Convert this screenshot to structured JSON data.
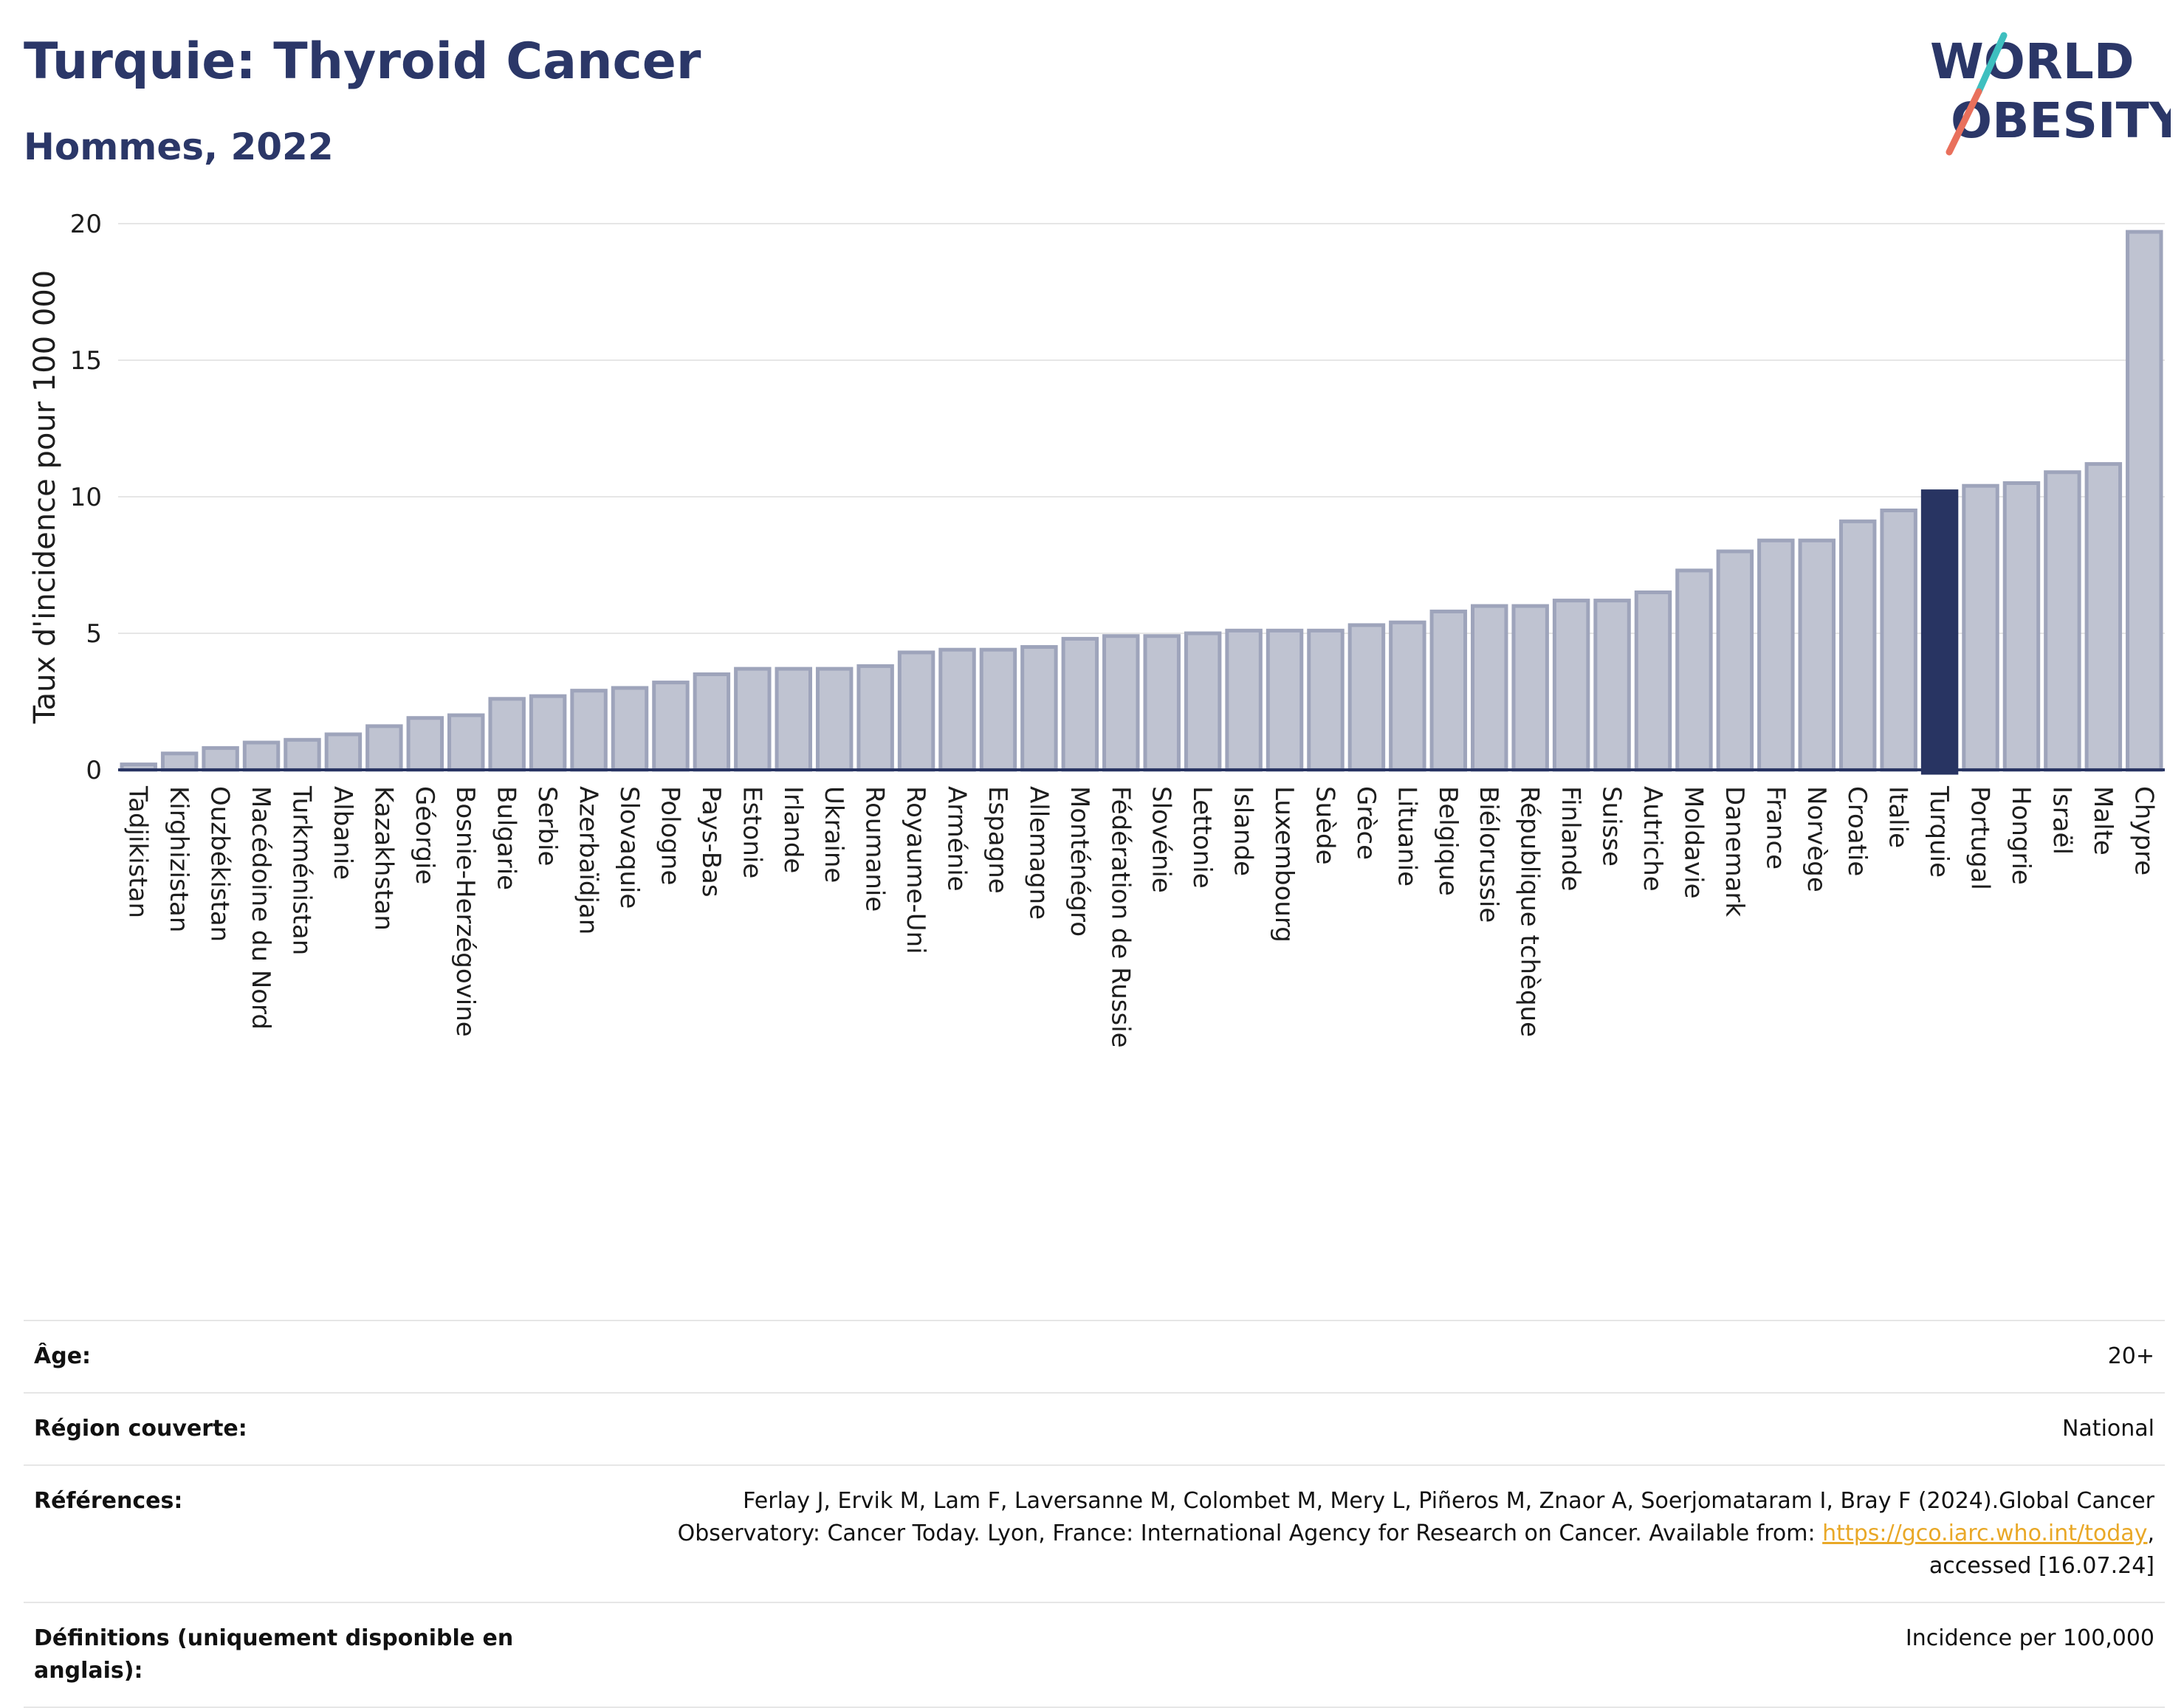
{
  "header": {
    "title": "Turquie: Thyroid Cancer",
    "subtitle": "Hommes, 2022"
  },
  "logo": {
    "line1": "WORLD",
    "line2": "OBESITY",
    "slash_colors": [
      "#3ebfbf",
      "#e9705c"
    ]
  },
  "colors": {
    "bar": "#bfc3d1",
    "bar_edge": "#9ea4bb",
    "highlight": "#283462",
    "grid": "#e6e6e6",
    "axis": "#283462"
  },
  "chart_data": {
    "type": "bar",
    "ylabel": "Taux d'incidence pour 100 000",
    "xlabel": "",
    "ylim": [
      0,
      20
    ],
    "yticks": [
      0,
      5,
      10,
      15,
      20
    ],
    "grid": true,
    "highlight": "Turquie",
    "categories": [
      "Tadjikistan",
      "Kirghizistan",
      "Ouzbékistan",
      "Macédoine du Nord",
      "Turkménistan",
      "Albanie",
      "Kazakhstan",
      "Géorgie",
      "Bosnie-Herzégovine",
      "Bulgarie",
      "Serbie",
      "Azerbaïdjan",
      "Slovaquie",
      "Pologne",
      "Pays-Bas",
      "Estonie",
      "Irlande",
      "Ukraine",
      "Roumanie",
      "Royaume-Uni",
      "Arménie",
      "Espagne",
      "Allemagne",
      "Monténégro",
      "Fédération de Russie",
      "Slovénie",
      "Lettonie",
      "Islande",
      "Luxembourg",
      "Suède",
      "Grèce",
      "Lituanie",
      "Belgique",
      "Biélorussie",
      "République tchèque",
      "Finlande",
      "Suisse",
      "Autriche",
      "Moldavie",
      "Danemark",
      "France",
      "Norvège",
      "Croatie",
      "Italie",
      "Turquie",
      "Portugal",
      "Hongrie",
      "Israël",
      "Malte",
      "Chypre"
    ],
    "values": [
      0.2,
      0.6,
      0.8,
      1.0,
      1.1,
      1.3,
      1.6,
      1.9,
      2.0,
      2.6,
      2.7,
      2.9,
      3.0,
      3.2,
      3.5,
      3.7,
      3.7,
      3.7,
      3.8,
      4.3,
      4.4,
      4.4,
      4.5,
      4.8,
      4.9,
      4.9,
      5.0,
      5.1,
      5.1,
      5.1,
      5.3,
      5.4,
      5.8,
      6.0,
      6.0,
      6.2,
      6.2,
      6.5,
      7.3,
      8.0,
      8.4,
      8.4,
      9.1,
      9.5,
      10.2,
      10.4,
      10.5,
      10.9,
      11.2,
      19.7
    ]
  },
  "info": {
    "age_label": "Âge:",
    "age_value": "20+",
    "region_label": "Région couverte:",
    "region_value": "National",
    "refs_label": "Références:",
    "refs_text_1": "Ferlay J, Ervik M, Lam F, Laversanne M, Colombet M, Mery L, Piñeros M, Znaor A, Soerjomataram I, Bray F (2024).Global Cancer",
    "refs_text_2": "Observatory: Cancer Today. Lyon, France: International Agency for Research on Cancer. Available from: ",
    "refs_link": "https://gco.iarc.who.int/today",
    "refs_text_3": ",",
    "refs_text_4": "accessed [16.07.24]",
    "defs_label": "Définitions (uniquement disponible en anglais):",
    "defs_value": "Incidence per 100,000"
  }
}
